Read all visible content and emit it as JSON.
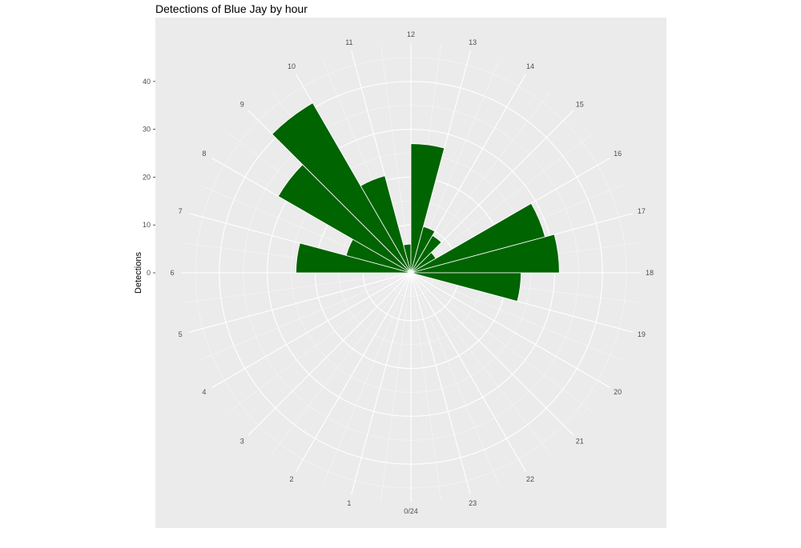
{
  "chart_data": {
    "type": "bar",
    "coord": "polar",
    "title": "Detections of Blue Jay by hour",
    "xlabel": "",
    "ylabel": "Detections",
    "y_ticks": [
      0,
      10,
      20,
      30,
      40
    ],
    "y_tick_labels": [
      "0",
      "10",
      "20",
      "30",
      "40"
    ],
    "hour_labels": [
      "0/24",
      "1",
      "2",
      "3",
      "4",
      "5",
      "6",
      "7",
      "8",
      "9",
      "10",
      "11",
      "12",
      "13",
      "14",
      "15",
      "16",
      "17",
      "18",
      "19",
      "20",
      "21",
      "22",
      "23"
    ],
    "categories": [
      "6",
      "7",
      "8",
      "9",
      "10",
      "11",
      "12",
      "13",
      "14",
      "15",
      "16",
      "17",
      "18"
    ],
    "values": [
      24,
      14,
      32,
      41,
      21,
      6,
      27,
      10,
      9,
      6,
      29,
      31,
      23
    ],
    "ylim": [
      0,
      48
    ],
    "grid": true,
    "legend": "none",
    "bar_color": "#006400",
    "panel_color": "#EBEBEB",
    "grid_color": "#FFFFFF"
  }
}
